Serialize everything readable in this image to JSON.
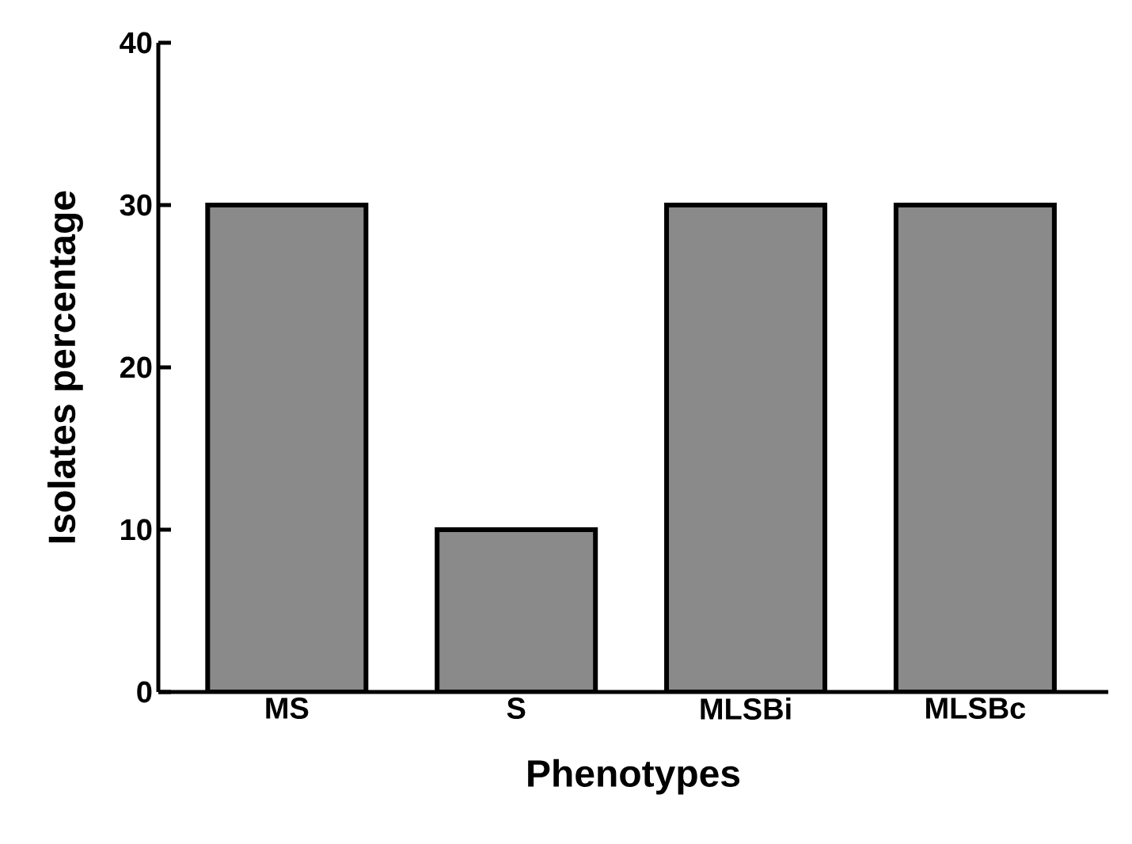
{
  "chart_data": {
    "type": "bar",
    "xlabel": "Phenotypes",
    "ylabel": "Isolates percentage",
    "categories": [
      "MS",
      "S",
      "MLSBi",
      "MLSBc"
    ],
    "values": [
      30,
      10,
      30,
      30
    ],
    "color": "#8a8a8a",
    "ylim": [
      0,
      40
    ],
    "yticks": [
      0,
      10,
      20,
      30,
      40
    ]
  }
}
